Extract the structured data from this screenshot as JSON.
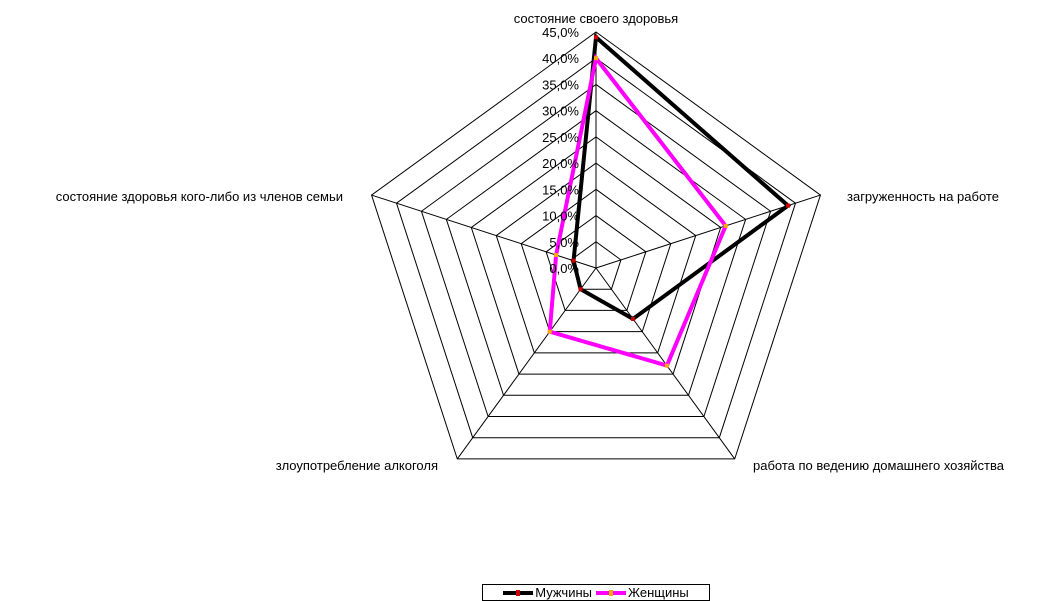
{
  "colors": {
    "series": [
      "#000000",
      "#ff00ff"
    ],
    "markers": [
      "#cc0000",
      "#ffaa00"
    ],
    "grid": "#000000",
    "background": "#ffffff"
  },
  "chart_data": {
    "type": "radar",
    "title": "",
    "axes": [
      "состояние своего здоровья",
      "загруженность на работе",
      "работа по ведению домашнего хозяйства",
      "злоупотребление алкоголя",
      "состояние здоровья кого-либо из членов семьи"
    ],
    "tick_labels": [
      "0,0%",
      "5,0%",
      "10,0%",
      "15,0%",
      "20,0%",
      "25,0%",
      "30,0%",
      "35,0%",
      "40,0%",
      "45,0%"
    ],
    "range": [
      0,
      45
    ],
    "series": [
      {
        "name": "Мужчины",
        "values": [
          44.0,
          38.5,
          12.0,
          5.0,
          4.5
        ]
      },
      {
        "name": "Женщины",
        "values": [
          40.0,
          26.0,
          23.0,
          15.0,
          8.0
        ]
      }
    ],
    "legend_position": "bottom"
  }
}
